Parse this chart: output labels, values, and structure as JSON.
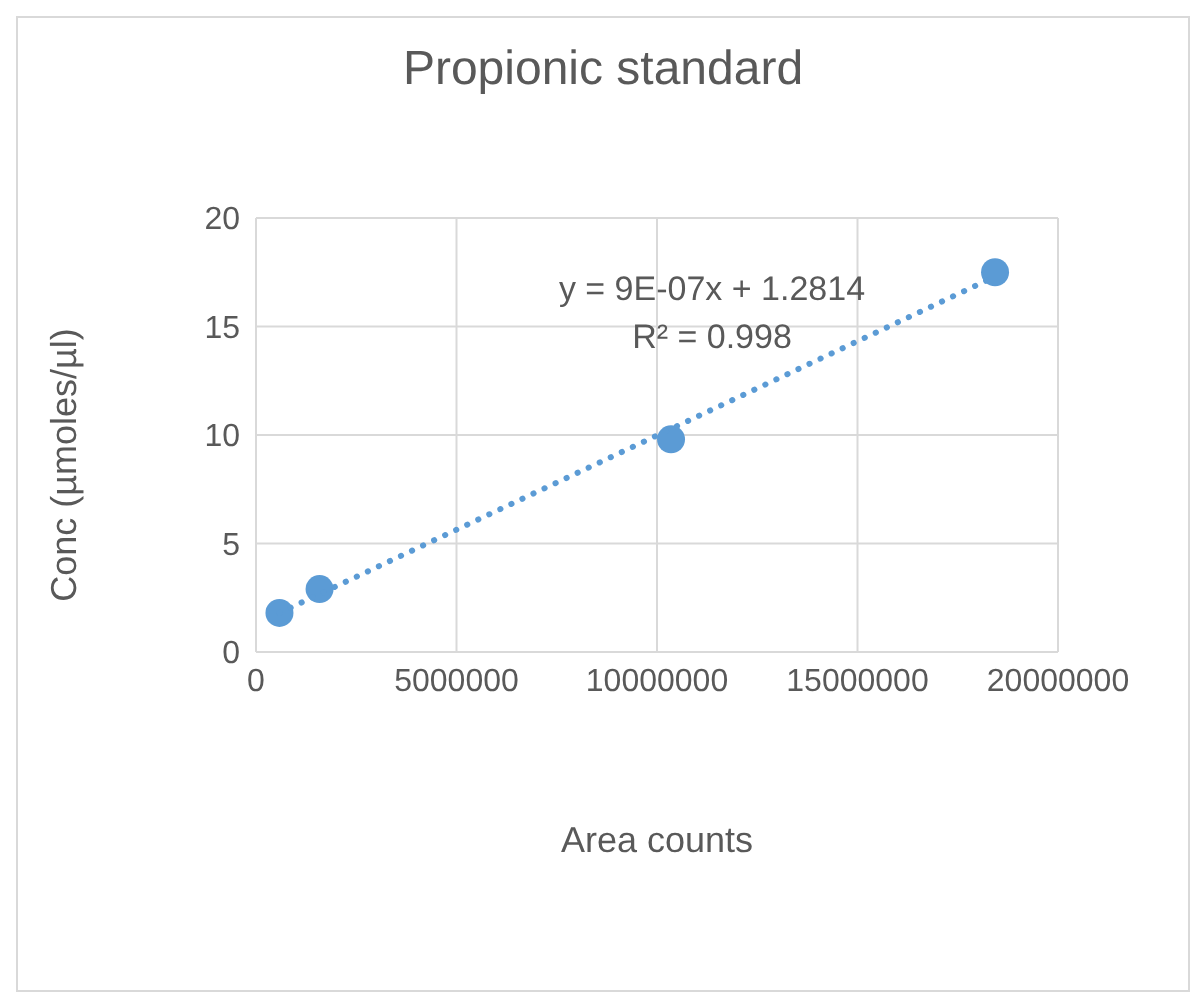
{
  "chart_data": {
    "type": "scatter",
    "title": "Propionic standard",
    "xlabel": "Area counts",
    "ylabel": "Conc (µmoles/µl)",
    "x": [
      585000,
      1585000,
      10350000,
      18430000
    ],
    "series": [
      {
        "type": "scatter",
        "color": "#5b9bd5",
        "values": [
          1.8,
          2.9,
          9.8,
          17.5
        ],
        "marker": "circle"
      },
      {
        "type": "line",
        "color": "#5b9bd5",
        "x": [
          585000,
          18430000
        ],
        "values": [
          1.8,
          17.3
        ],
        "line_style": "dotted",
        "marker": "none"
      }
    ],
    "xlim": [
      0,
      20000000
    ],
    "xticks": [
      0,
      5000000,
      10000000,
      15000000,
      20000000
    ],
    "ylim": [
      0,
      20
    ],
    "yticks": [
      0,
      5,
      10,
      15,
      20
    ],
    "grid": true,
    "legend": false,
    "annotations": [
      "y = 9E-07x + 1.2814",
      "R² = 0.998"
    ]
  }
}
